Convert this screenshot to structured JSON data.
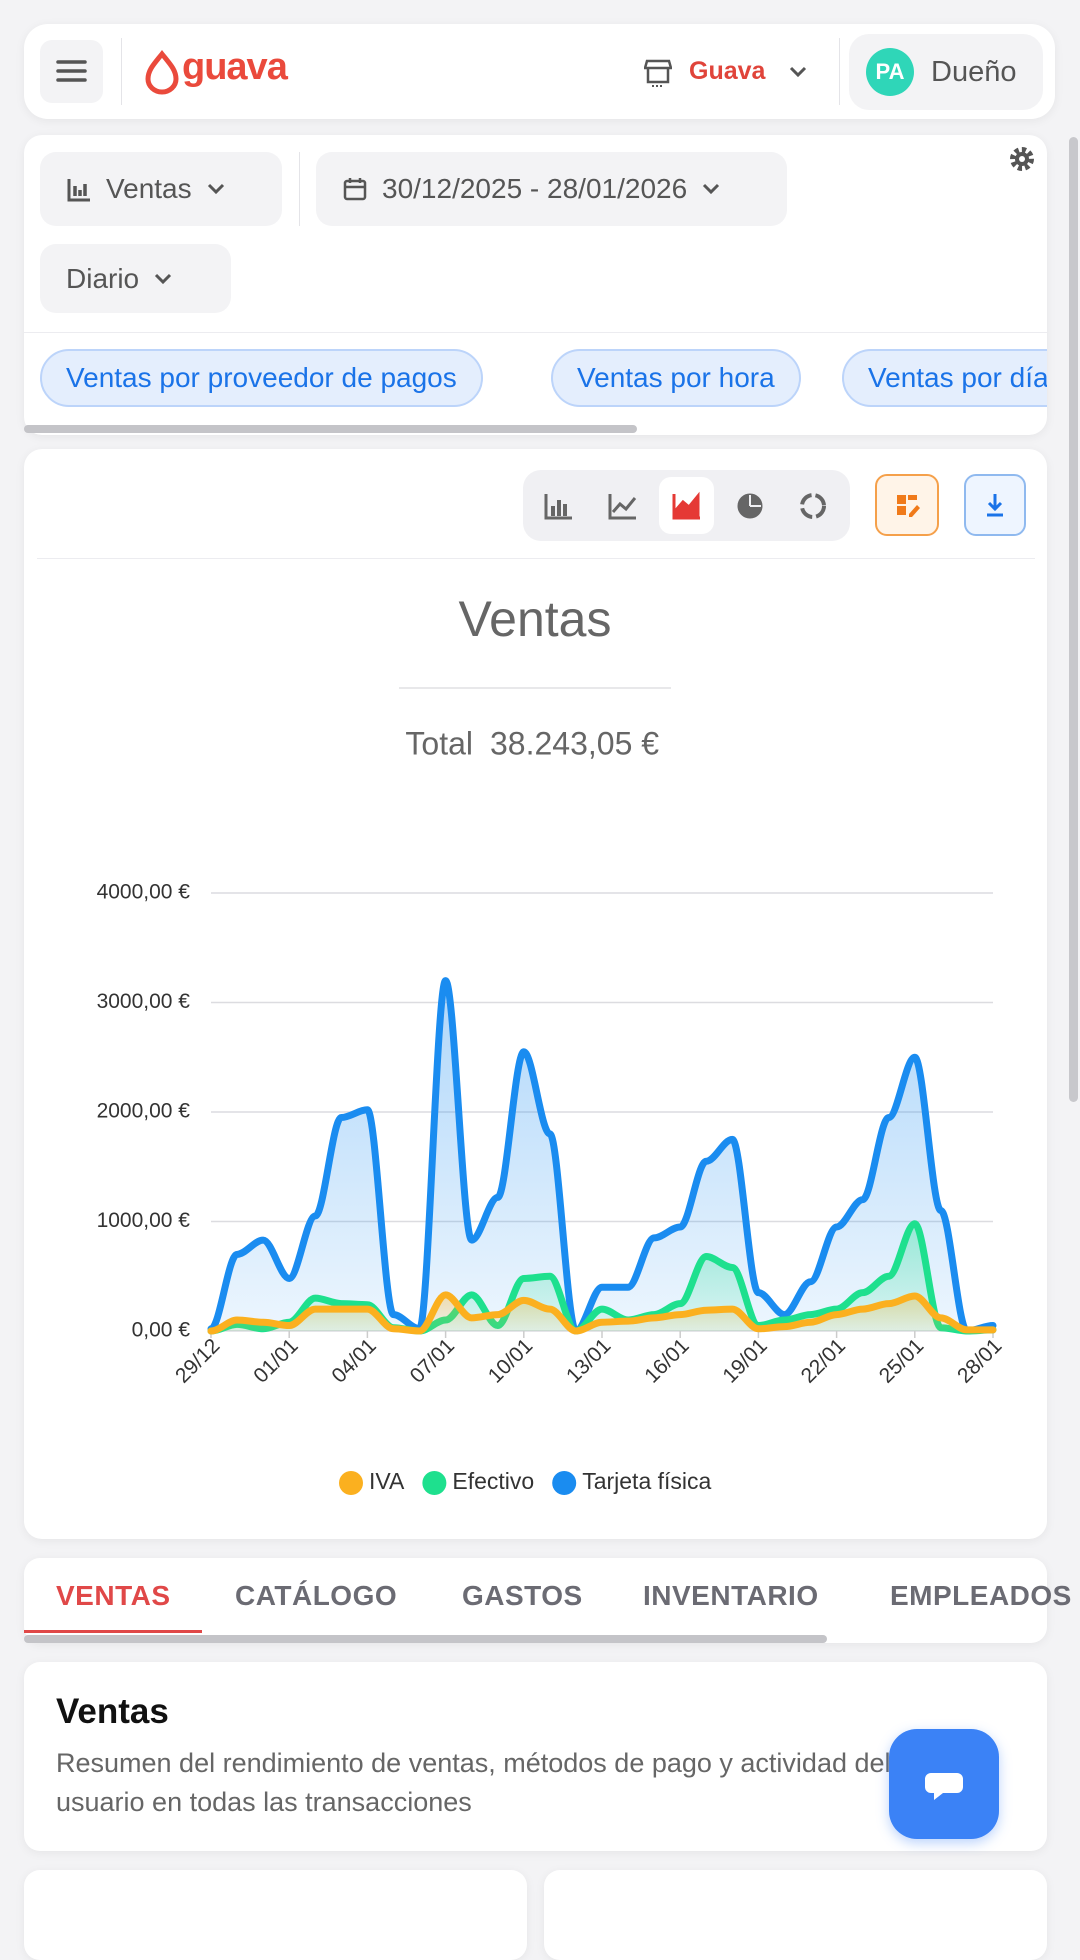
{
  "header": {
    "logo": "guava",
    "store": "Guava",
    "avatar": "PA",
    "role": "Dueño"
  },
  "filters": {
    "metric": "Ventas",
    "date_range": "30/12/2025 - 28/01/2026",
    "granularity": "Diario",
    "chips": [
      "Ventas por proveedor de pagos",
      "Ventas por hora",
      "Ventas por día"
    ]
  },
  "chart_data": {
    "type": "area",
    "title": "Ventas",
    "total_label": "Total",
    "total": "38.243,05 €",
    "categories": [
      "29/12",
      null,
      null,
      "01/01",
      null,
      null,
      "04/01",
      null,
      null,
      "07/01",
      null,
      null,
      "10/01",
      null,
      null,
      "13/01",
      null,
      null,
      "16/01",
      null,
      null,
      "19/01",
      null,
      null,
      "22/01",
      null,
      null,
      "25/01",
      null,
      null,
      "28/01"
    ],
    "series": [
      {
        "name": "IVA",
        "color": "#fbb01f",
        "values": [
          0,
          100,
          80,
          50,
          200,
          200,
          200,
          20,
          0,
          330,
          120,
          150,
          280,
          200,
          0,
          80,
          90,
          120,
          150,
          190,
          200,
          20,
          40,
          80,
          150,
          200,
          250,
          320,
          120,
          10,
          10
        ]
      },
      {
        "name": "Efectivo",
        "color": "#1ee08e",
        "values": [
          0,
          60,
          20,
          80,
          300,
          250,
          240,
          30,
          0,
          100,
          330,
          50,
          480,
          500,
          0,
          200,
          100,
          150,
          250,
          680,
          580,
          50,
          100,
          150,
          200,
          350,
          500,
          980,
          30,
          0,
          10
        ]
      },
      {
        "name": "Tarjeta física",
        "color": "#1a8cf0",
        "values": [
          20,
          700,
          830,
          480,
          1050,
          1950,
          2020,
          150,
          20,
          3200,
          830,
          1220,
          2550,
          1800,
          0,
          400,
          400,
          850,
          950,
          1550,
          1750,
          350,
          150,
          450,
          950,
          1200,
          1950,
          2500,
          1100,
          0,
          50
        ]
      }
    ],
    "ylim": [
      0,
      4000
    ],
    "yticks": [
      {
        "value": 0,
        "label": "0,00 €"
      },
      {
        "value": 1000,
        "label": "1000,00 €"
      },
      {
        "value": 2000,
        "label": "2000,00 €"
      },
      {
        "value": 3000,
        "label": "3000,00 €"
      },
      {
        "value": 4000,
        "label": "4000,00 €"
      }
    ],
    "grid": true,
    "legend": "bottom"
  },
  "tabs": {
    "items": [
      "VENTAS",
      "CATÁLOGO",
      "GASTOS",
      "INVENTARIO",
      "EMPLEADOS"
    ],
    "active": 0
  },
  "section": {
    "title": "Ventas",
    "description": "Resumen del rendimiento de ventas, métodos de pago y actividad del usuario en todas las transacciones"
  }
}
